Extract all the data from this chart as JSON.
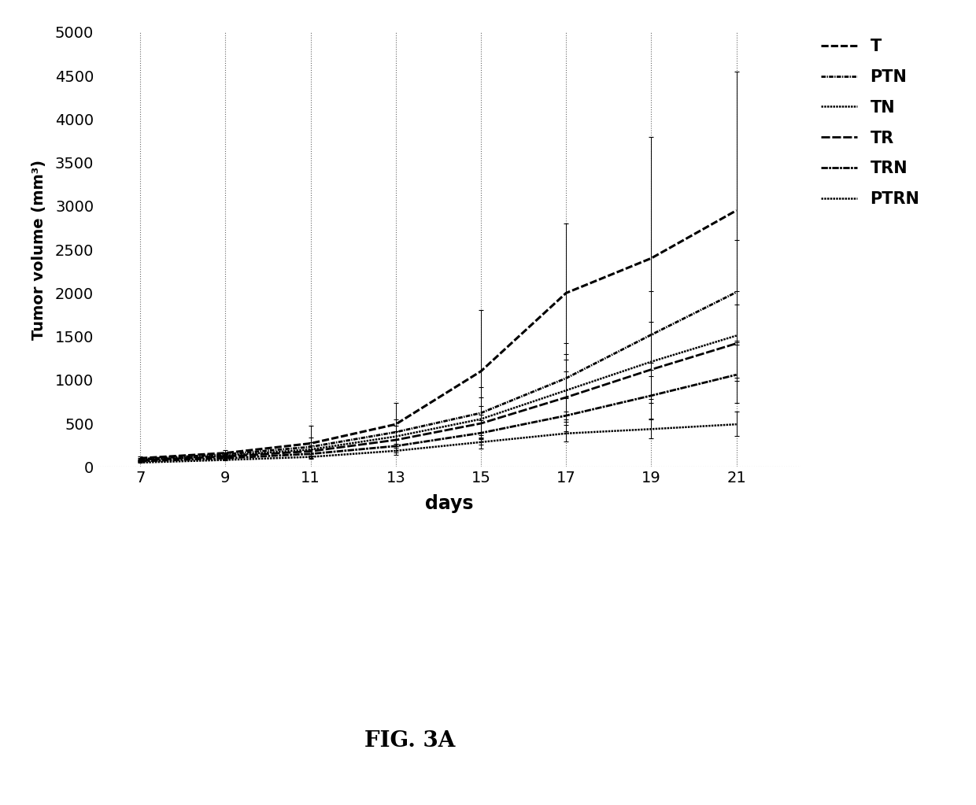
{
  "days": [
    7,
    9,
    11,
    13,
    15,
    17,
    19,
    21
  ],
  "series": {
    "T": {
      "values": [
        100,
        160,
        270,
        490,
        1100,
        2000,
        2400,
        2950
      ],
      "yerr_lo": [
        20,
        30,
        150,
        180,
        500,
        700,
        1200,
        1500
      ],
      "yerr_hi": [
        20,
        30,
        200,
        250,
        700,
        800,
        1400,
        1600
      ]
    },
    "PTN": {
      "values": [
        90,
        145,
        230,
        400,
        620,
        1020,
        1520,
        2010
      ],
      "yerr_lo": [
        15,
        25,
        100,
        130,
        280,
        380,
        480,
        580
      ],
      "yerr_hi": [
        15,
        25,
        110,
        150,
        300,
        400,
        500,
        600
      ]
    },
    "TN": {
      "values": [
        80,
        130,
        200,
        350,
        550,
        880,
        1210,
        1510
      ],
      "yerr_lo": [
        10,
        20,
        70,
        110,
        220,
        330,
        430,
        480
      ],
      "yerr_hi": [
        10,
        20,
        80,
        120,
        250,
        350,
        460,
        510
      ]
    },
    "TR": {
      "values": [
        75,
        120,
        180,
        310,
        500,
        800,
        1120,
        1420
      ],
      "yerr_lo": [
        8,
        15,
        60,
        90,
        180,
        280,
        380,
        430
      ],
      "yerr_hi": [
        8,
        15,
        65,
        100,
        200,
        300,
        400,
        450
      ]
    },
    "TRN": {
      "values": [
        65,
        100,
        150,
        240,
        390,
        590,
        820,
        1060
      ],
      "yerr_lo": [
        6,
        10,
        45,
        70,
        130,
        180,
        270,
        320
      ],
      "yerr_hi": [
        6,
        10,
        50,
        80,
        150,
        200,
        300,
        350
      ]
    },
    "PTRN": {
      "values": [
        50,
        80,
        115,
        185,
        285,
        385,
        435,
        490
      ],
      "yerr_lo": [
        4,
        8,
        25,
        45,
        70,
        90,
        110,
        130
      ],
      "yerr_hi": [
        4,
        8,
        30,
        50,
        80,
        100,
        120,
        150
      ]
    }
  },
  "xlabel": "days",
  "ylabel": "Tumor volume (mm³)",
  "xlim": [
    6,
    22.5
  ],
  "ylim": [
    0,
    5000
  ],
  "yticks": [
    0,
    500,
    1000,
    1500,
    2000,
    2500,
    3000,
    3500,
    4000,
    4500,
    5000
  ],
  "xticks": [
    7,
    9,
    11,
    13,
    15,
    17,
    19,
    21
  ],
  "title": "FIG. 3A",
  "figsize": [
    12.4,
    10.23
  ],
  "dpi": 100
}
